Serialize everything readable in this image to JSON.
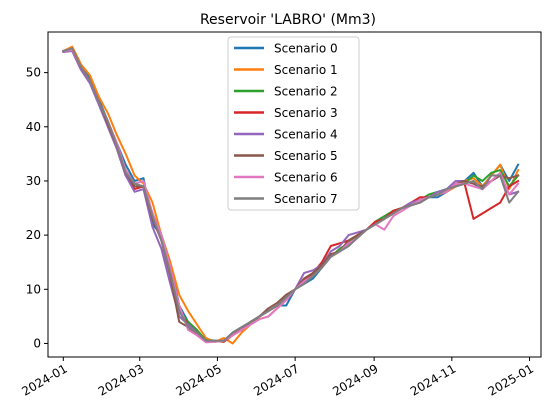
{
  "chart_data": {
    "type": "line",
    "title": "Reservoir 'LABRO' (Mm3)",
    "xlabel": "",
    "ylabel": "",
    "x_axis_type": "date",
    "xlim": [
      "2023-12-20",
      "2025-01-10"
    ],
    "ylim": [
      -2.5,
      57.5
    ],
    "x_ticks": [
      "2024-01-01",
      "2024-03-01",
      "2024-05-01",
      "2024-07-01",
      "2024-09-01",
      "2024-11-01",
      "2025-01-01"
    ],
    "x_tick_labels": [
      "2024-01",
      "2024-03",
      "2024-05",
      "2024-07",
      "2024-09",
      "2024-11",
      "2025-01"
    ],
    "y_ticks": [
      0,
      10,
      20,
      30,
      40,
      50
    ],
    "y_tick_labels": [
      "0",
      "10",
      "20",
      "30",
      "40",
      "50"
    ],
    "grid": false,
    "legend_position": "top-center",
    "dates": [
      "2024-01-01",
      "2024-01-08",
      "2024-01-15",
      "2024-01-22",
      "2024-01-29",
      "2024-02-05",
      "2024-02-12",
      "2024-02-19",
      "2024-02-26",
      "2024-03-04",
      "2024-03-11",
      "2024-03-18",
      "2024-03-25",
      "2024-04-01",
      "2024-04-08",
      "2024-04-15",
      "2024-04-22",
      "2024-04-29",
      "2024-05-06",
      "2024-05-13",
      "2024-05-20",
      "2024-05-27",
      "2024-06-03",
      "2024-06-10",
      "2024-06-17",
      "2024-06-24",
      "2024-07-01",
      "2024-07-08",
      "2024-07-15",
      "2024-07-22",
      "2024-07-29",
      "2024-08-05",
      "2024-08-12",
      "2024-08-19",
      "2024-08-26",
      "2024-09-02",
      "2024-09-09",
      "2024-09-16",
      "2024-09-23",
      "2024-09-30",
      "2024-10-07",
      "2024-10-14",
      "2024-10-21",
      "2024-10-28",
      "2024-11-04",
      "2024-11-11",
      "2024-11-18",
      "2024-11-25",
      "2024-12-02",
      "2024-12-09",
      "2024-12-16",
      "2024-12-23"
    ],
    "series": [
      {
        "name": "Scenario 0",
        "color": "#1f77b4",
        "values": [
          54,
          54.5,
          51,
          49,
          45,
          41,
          37,
          33,
          30,
          30.5,
          22,
          20,
          15,
          7,
          4,
          2,
          0.8,
          0.5,
          0.5,
          2,
          3,
          4,
          5,
          6,
          7,
          7,
          10,
          11,
          12,
          14,
          16,
          17,
          18,
          20,
          21,
          22,
          23,
          24,
          25,
          25.5,
          26,
          27,
          27,
          28,
          29,
          30,
          31.5,
          29,
          31,
          33,
          30,
          33
        ]
      },
      {
        "name": "Scenario 1",
        "color": "#ff7f0e",
        "values": [
          54,
          54.8,
          51.5,
          49.5,
          45.5,
          42.5,
          38.5,
          35,
          31,
          29.5,
          26,
          20,
          15,
          9,
          6,
          3.5,
          1,
          0.3,
          1,
          0,
          2,
          3.5,
          4.5,
          5,
          6.5,
          8,
          10,
          12,
          13,
          14,
          16,
          17,
          19,
          20,
          21,
          22,
          23,
          24,
          25,
          26,
          26.5,
          27,
          27.5,
          28,
          29,
          30,
          30.5,
          29,
          31,
          33,
          28.5,
          32
        ]
      },
      {
        "name": "Scenario 2",
        "color": "#2ca02c",
        "values": [
          54,
          54.2,
          51,
          48.5,
          44.5,
          41,
          36.5,
          32,
          29.5,
          29,
          24,
          20,
          13,
          6,
          4,
          2.5,
          0.5,
          0.5,
          0.3,
          2,
          3,
          3.5,
          5,
          6,
          7,
          8.5,
          10,
          11.5,
          13,
          14.5,
          16,
          17.5,
          18.5,
          20,
          21,
          22.5,
          23.5,
          24.5,
          25,
          26,
          26.5,
          27.5,
          28,
          28.5,
          29,
          29.5,
          31,
          30,
          31.5,
          32,
          29,
          31
        ]
      },
      {
        "name": "Scenario 3",
        "color": "#d62728",
        "values": [
          54,
          54,
          50.5,
          48.5,
          44.5,
          40,
          36,
          31,
          28.5,
          29,
          24,
          19,
          13,
          6,
          3.5,
          2,
          0.3,
          0.5,
          0.3,
          1.5,
          2.5,
          4,
          5,
          6,
          7,
          8,
          10,
          11.5,
          13,
          15,
          18,
          18.5,
          19,
          20,
          21,
          22.5,
          23,
          24.5,
          25,
          26,
          27,
          27,
          27.5,
          28.5,
          29,
          29.5,
          23,
          24,
          25,
          26,
          29,
          30
        ]
      },
      {
        "name": "Scenario 4",
        "color": "#9467bd",
        "values": [
          53.8,
          54,
          50.5,
          48,
          44,
          40,
          36,
          31,
          28,
          28.5,
          21.5,
          17.5,
          11,
          5,
          3.5,
          2,
          0.4,
          0.4,
          0.5,
          1.5,
          2.5,
          4,
          5,
          6,
          7,
          8.5,
          10,
          13,
          13.5,
          14.5,
          17,
          18,
          20,
          20.5,
          21,
          22,
          23,
          24,
          25,
          26,
          26.5,
          27,
          28,
          28.5,
          30,
          30,
          29.5,
          28.5,
          30,
          31,
          27.5,
          28
        ]
      },
      {
        "name": "Scenario 5",
        "color": "#8c564b",
        "values": [
          54,
          54.3,
          51,
          48.5,
          44.5,
          40.5,
          36.5,
          31.5,
          29,
          29,
          23,
          19,
          12.5,
          4,
          3,
          1.5,
          0.5,
          0.3,
          0.5,
          2,
          2.5,
          4,
          5,
          6.5,
          7.5,
          9,
          10,
          12,
          13,
          14.5,
          16.5,
          17,
          19,
          20,
          21,
          22,
          23,
          24,
          25,
          25.5,
          26,
          27,
          27.5,
          28,
          29.5,
          30,
          29.5,
          29,
          30,
          31,
          30.5,
          31
        ]
      },
      {
        "name": "Scenario 6",
        "color": "#e377c2",
        "values": [
          54,
          54.2,
          51,
          48.5,
          44.5,
          41,
          37,
          32,
          29.5,
          30,
          24,
          20,
          14,
          7,
          2.5,
          1.5,
          0.2,
          0.3,
          0.5,
          1.5,
          2.5,
          3.5,
          4.5,
          5,
          6.5,
          8,
          10,
          11.5,
          12.5,
          14,
          16,
          17,
          18.5,
          19.5,
          21,
          22,
          21,
          23.5,
          24.5,
          25.5,
          26.5,
          27,
          27.5,
          28,
          29.5,
          29.5,
          29,
          28.5,
          30,
          31.5,
          27.5,
          29.5
        ]
      },
      {
        "name": "Scenario 7",
        "color": "#7f7f7f",
        "values": [
          54,
          54.5,
          51,
          48.5,
          44.5,
          41,
          36.5,
          31.5,
          29.5,
          29,
          23.5,
          19,
          13,
          6,
          3,
          2,
          0.5,
          0.5,
          0.5,
          2,
          3,
          4,
          5,
          6,
          7,
          8.5,
          10,
          11,
          12.5,
          14,
          16,
          17,
          18,
          19.5,
          21,
          22,
          23,
          24,
          25,
          25.5,
          26,
          27,
          27.5,
          28.5,
          29,
          29.5,
          30,
          28.5,
          31,
          31,
          26,
          28
        ]
      }
    ]
  }
}
